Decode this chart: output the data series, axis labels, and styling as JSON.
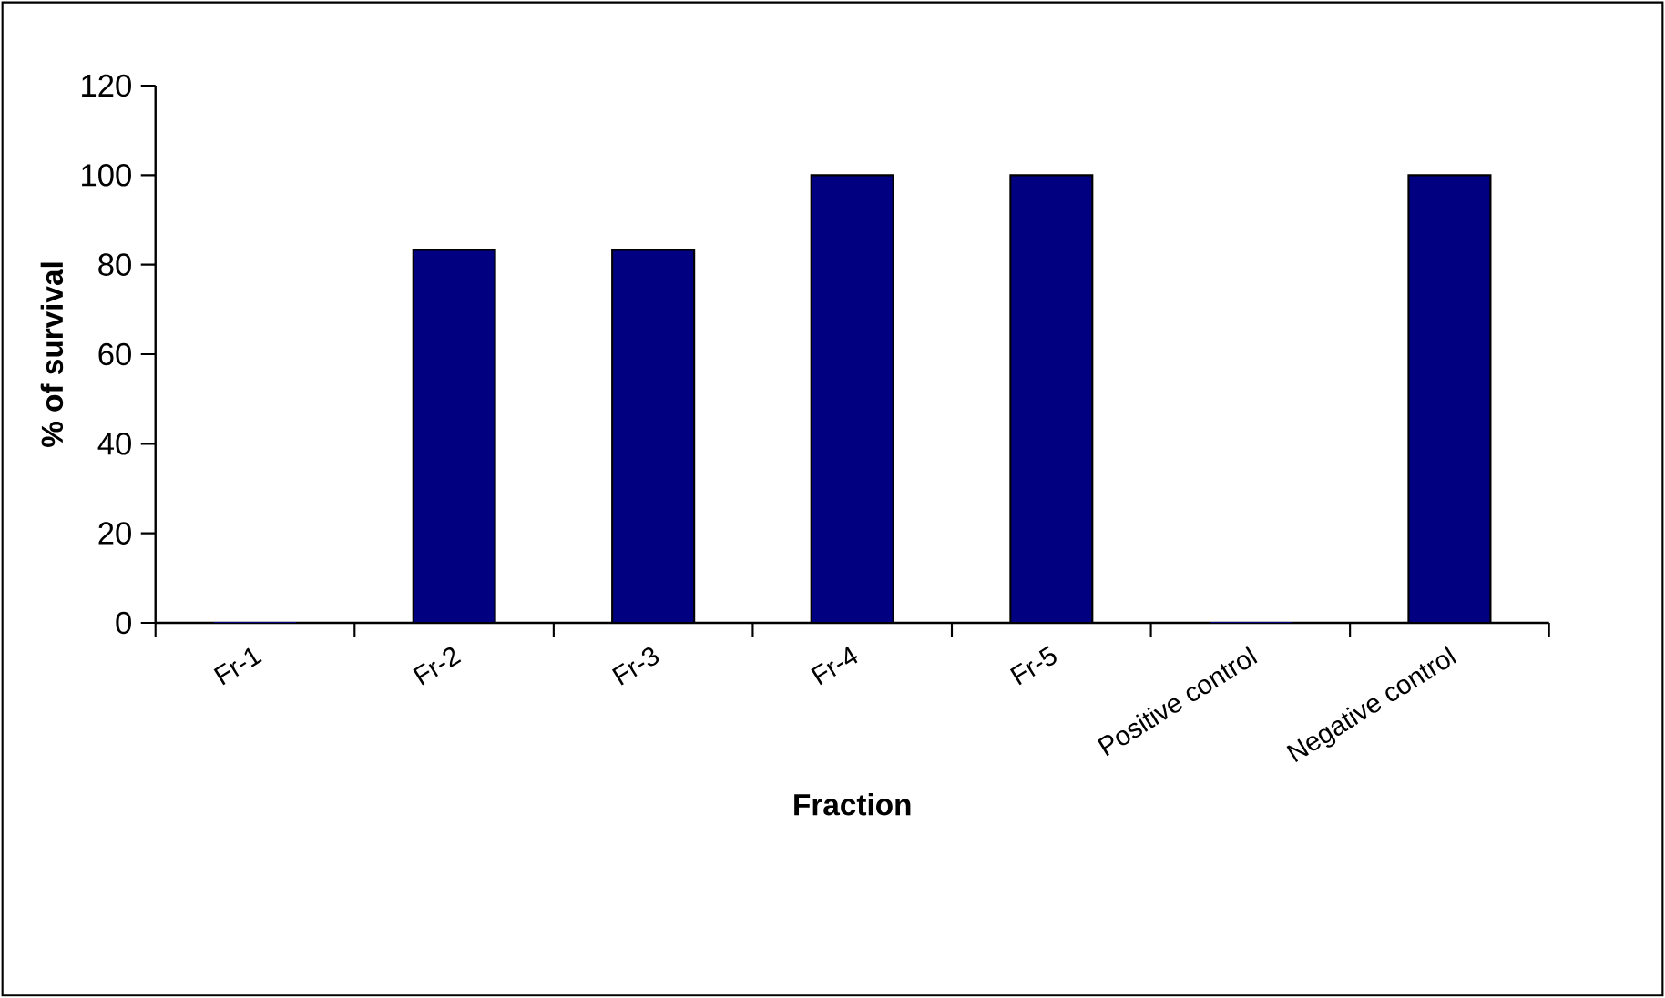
{
  "chart_data": {
    "type": "bar",
    "xlabel": "Fraction",
    "ylabel": "% of survival",
    "categories": [
      "Fr-1",
      "Fr-2",
      "Fr-3",
      "Fr-4",
      "Fr-5",
      "Positive control",
      "Negative control"
    ],
    "values": [
      0,
      83.3,
      83.3,
      100,
      100,
      0,
      100
    ],
    "color": "#000080",
    "ylim": [
      0,
      120
    ],
    "yticks": [
      0,
      20,
      40,
      60,
      80,
      100,
      120
    ],
    "grid": false
  }
}
